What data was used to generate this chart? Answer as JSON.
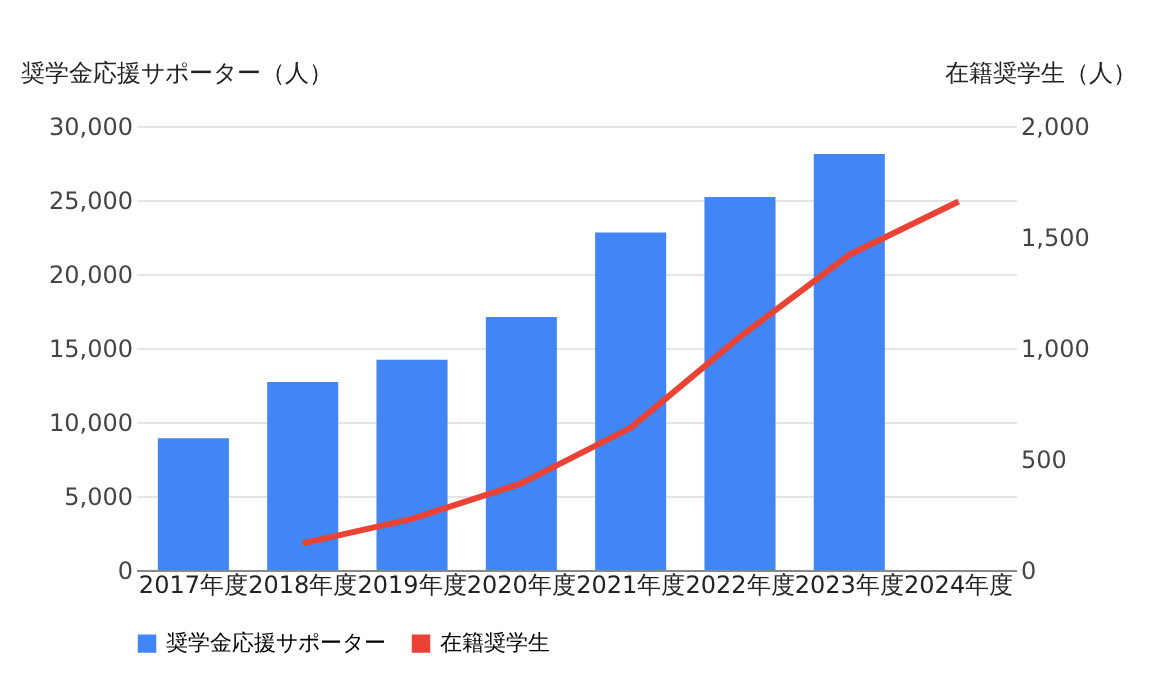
{
  "chart_data": {
    "type": "bar",
    "categories": [
      "2017年度",
      "2018年度",
      "2019年度",
      "2020年度",
      "2021年度",
      "2022年度",
      "2023年度",
      "2024年度"
    ],
    "ylabel": "奨学金応援サポーター（人）",
    "y2label": "在籍奨学生（人）",
    "series": [
      {
        "name": "奨学金応援サポーター",
        "color": "#4285f4",
        "values": [
          8900,
          12700,
          14200,
          17100,
          22800,
          25200,
          28100,
          null
        ]
      },
      {
        "name": "在籍奨学生",
        "type": "line",
        "axis": "y2",
        "color": "#ea4335",
        "values": [
          null,
          120,
          230,
          390,
          640,
          1050,
          1420,
          1660
        ]
      }
    ],
    "ylim": [
      0,
      30000
    ],
    "yticks": [
      0,
      {
        "value": 5000,
        "label": "5,000"
      },
      {
        "value": 10000,
        "label": "10,000"
      },
      {
        "value": 15000,
        "label": "15,000"
      },
      {
        "value": 20000,
        "label": "20,000"
      },
      {
        "value": 25000,
        "label": "25,000"
      },
      {
        "value": 30000,
        "label": "30,000"
      }
    ],
    "y2lim": [
      0,
      2000
    ],
    "y2ticks": [
      0,
      500,
      {
        "value": 1000,
        "label": "1,000"
      },
      {
        "value": 1500,
        "label": "1,500"
      },
      {
        "value": 2000,
        "label": "2,000"
      }
    ],
    "grid": "y",
    "legend": "bottom",
    "marker": "none",
    "line_style": "solid"
  }
}
